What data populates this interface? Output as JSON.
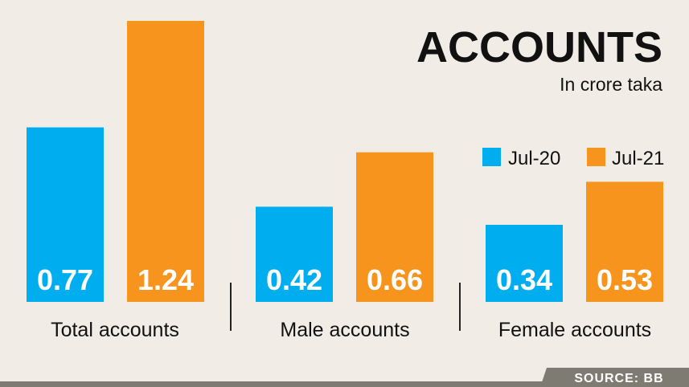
{
  "chart_data": {
    "type": "bar",
    "title": "ACCOUNTS",
    "subtitle": "In crore taka",
    "categories": [
      "Total accounts",
      "Male accounts",
      "Female accounts"
    ],
    "series": [
      {
        "name": "Jul-20",
        "values": [
          0.77,
          0.42,
          0.34
        ]
      },
      {
        "name": "Jul-21",
        "values": [
          1.24,
          0.66,
          0.53
        ]
      }
    ],
    "value_labels": [
      [
        "0.77",
        "0.42",
        "0.34"
      ],
      [
        "1.24",
        "0.66",
        "0.53"
      ]
    ],
    "legend_position": "top-right",
    "grid": false
  },
  "source": "SOURCE: BB",
  "colors": {
    "jul20": "#00aeef",
    "jul21": "#f7941d",
    "background": "#f1ede6",
    "footer": "#7d7b72"
  }
}
